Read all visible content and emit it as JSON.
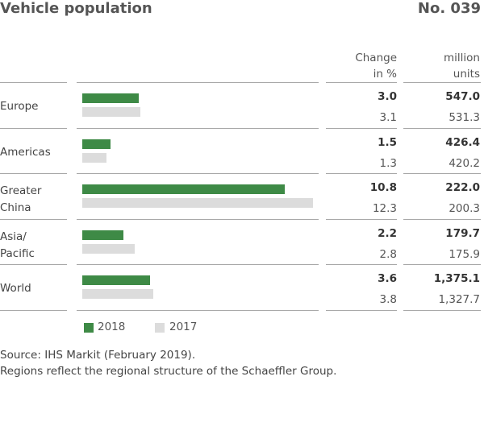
{
  "header": {
    "title": "Vehicle population",
    "number": "No. 039",
    "col_change": [
      "Change",
      "in %"
    ],
    "col_units": [
      "million",
      "units"
    ]
  },
  "colors": {
    "y2018": "#3e8a46",
    "y2017": "#dcdcdc"
  },
  "chart_data": {
    "type": "bar",
    "orientation": "horizontal",
    "categories": [
      "Europe",
      "Americas",
      "Greater China",
      "Asia/ Pacific",
      "World"
    ],
    "series": [
      {
        "name": "2018",
        "color": "#3e8a46",
        "change_pct": [
          "3.0",
          "1.5",
          "10.8",
          "2.2",
          "3.6"
        ],
        "units": [
          "547.0",
          "426.4",
          "222.0",
          "179.7",
          "1,375.1"
        ]
      },
      {
        "name": "2017",
        "color": "#dcdcdc",
        "change_pct": [
          "3.1",
          "1.3",
          "12.3",
          "2.8",
          "3.8"
        ],
        "units": [
          "531.3",
          "420.2",
          "200.3",
          "175.9",
          "1,327.7"
        ]
      }
    ],
    "bar_metric": "change_pct",
    "xlim": [
      0,
      12.3
    ],
    "legend": [
      "2018",
      "2017"
    ],
    "legend_position": "bottom-left"
  },
  "rows": [
    {
      "label_lines": [
        "Europe"
      ]
    },
    {
      "label_lines": [
        "Americas"
      ]
    },
    {
      "label_lines": [
        "Greater",
        "China"
      ]
    },
    {
      "label_lines": [
        "Asia/",
        "Pacific"
      ]
    },
    {
      "label_lines": [
        "World"
      ]
    }
  ],
  "legend": {
    "y2018": "2018",
    "y2017": "2017"
  },
  "footer": {
    "source": "Source: IHS Markit (February 2019).",
    "note": "Regions reflect the regional structure of the Schaeffler Group."
  }
}
